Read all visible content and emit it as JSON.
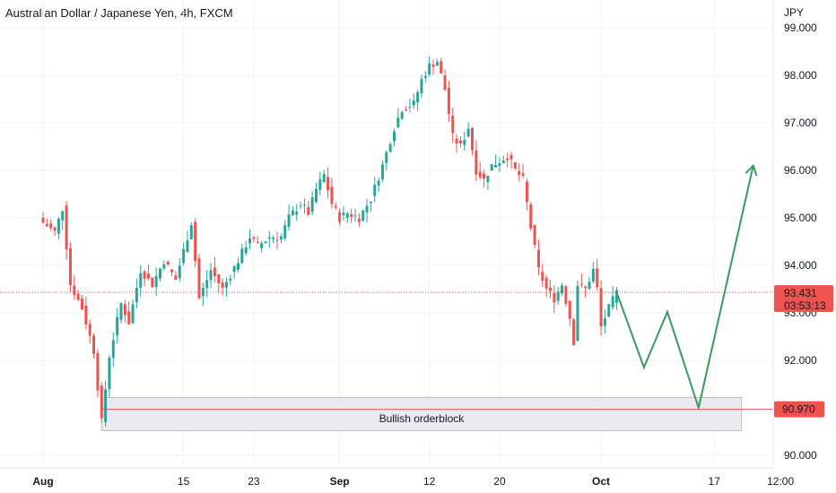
{
  "chart_title": "Australian Dollar / Japanese Yen, 4h, FXCM",
  "currency_label": "JPY",
  "chart_data": {
    "type": "candlestick",
    "symbol": "AUDJPY",
    "timeframe": "4h",
    "y_range": [
      89.7,
      99.3
    ],
    "y_ticks": [
      {
        "value": 99,
        "label": "99.000"
      },
      {
        "value": 98,
        "label": "98.000"
      },
      {
        "value": 97,
        "label": "97.000"
      },
      {
        "value": 96,
        "label": "96.000"
      },
      {
        "value": 95,
        "label": "95.000"
      },
      {
        "value": 94,
        "label": "94.000"
      },
      {
        "value": 93,
        "label": "93.000"
      },
      {
        "value": 92,
        "label": "92.000"
      },
      {
        "value": 90,
        "label": "90.000"
      }
    ],
    "x_ticks": [
      {
        "label": "Aug",
        "index": 0,
        "bold": true
      },
      {
        "label": "15",
        "index": 36,
        "bold": false
      },
      {
        "label": "23",
        "index": 54,
        "bold": false
      },
      {
        "label": "Sep",
        "index": 76,
        "bold": true
      },
      {
        "label": "12",
        "index": 99,
        "bold": false
      },
      {
        "label": "20",
        "index": 117,
        "bold": false
      },
      {
        "label": "Oct",
        "index": 143,
        "bold": true
      },
      {
        "label": "17",
        "index": 172,
        "bold": false
      },
      {
        "label": "12:00",
        "index": 189,
        "bold": false
      }
    ],
    "candle_count": 148,
    "price_path": [
      {
        "i": 0,
        "p": 94.9
      },
      {
        "i": 3,
        "p": 94.7
      },
      {
        "i": 5,
        "p": 95.2
      },
      {
        "i": 7,
        "p": 93.6
      },
      {
        "i": 10,
        "p": 93.1
      },
      {
        "i": 13,
        "p": 92.2
      },
      {
        "i": 15,
        "p": 90.7
      },
      {
        "i": 17,
        "p": 92.1
      },
      {
        "i": 20,
        "p": 93.2
      },
      {
        "i": 22,
        "p": 92.8
      },
      {
        "i": 25,
        "p": 93.9
      },
      {
        "i": 28,
        "p": 93.6
      },
      {
        "i": 31,
        "p": 94.1
      },
      {
        "i": 34,
        "p": 93.7
      },
      {
        "i": 38,
        "p": 94.9
      },
      {
        "i": 40,
        "p": 93.3
      },
      {
        "i": 43,
        "p": 93.9
      },
      {
        "i": 46,
        "p": 93.5
      },
      {
        "i": 50,
        "p": 94.1
      },
      {
        "i": 53,
        "p": 94.6
      },
      {
        "i": 55,
        "p": 94.4
      },
      {
        "i": 58,
        "p": 94.6
      },
      {
        "i": 61,
        "p": 94.6
      },
      {
        "i": 63,
        "p": 95.0
      },
      {
        "i": 66,
        "p": 95.3
      },
      {
        "i": 68,
        "p": 95.1
      },
      {
        "i": 70,
        "p": 95.6
      },
      {
        "i": 72,
        "p": 95.9
      },
      {
        "i": 74,
        "p": 95.3
      },
      {
        "i": 76,
        "p": 95.0
      },
      {
        "i": 78,
        "p": 95.1
      },
      {
        "i": 81,
        "p": 95.0
      },
      {
        "i": 84,
        "p": 95.4
      },
      {
        "i": 87,
        "p": 96.1
      },
      {
        "i": 90,
        "p": 96.9
      },
      {
        "i": 92,
        "p": 97.3
      },
      {
        "i": 95,
        "p": 97.4
      },
      {
        "i": 97,
        "p": 97.9
      },
      {
        "i": 99,
        "p": 98.2
      },
      {
        "i": 101,
        "p": 98.3
      },
      {
        "i": 103,
        "p": 97.7
      },
      {
        "i": 105,
        "p": 96.7
      },
      {
        "i": 107,
        "p": 96.5
      },
      {
        "i": 109,
        "p": 96.9
      },
      {
        "i": 111,
        "p": 96.0
      },
      {
        "i": 113,
        "p": 95.8
      },
      {
        "i": 115,
        "p": 96.1
      },
      {
        "i": 117,
        "p": 96.2
      },
      {
        "i": 119,
        "p": 96.3
      },
      {
        "i": 121,
        "p": 96.0
      },
      {
        "i": 123,
        "p": 95.8
      },
      {
        "i": 125,
        "p": 94.8
      },
      {
        "i": 127,
        "p": 93.9
      },
      {
        "i": 129,
        "p": 93.5
      },
      {
        "i": 131,
        "p": 93.3
      },
      {
        "i": 133,
        "p": 93.6
      },
      {
        "i": 135,
        "p": 92.9
      },
      {
        "i": 136,
        "p": 92.4
      },
      {
        "i": 137,
        "p": 93.6
      },
      {
        "i": 139,
        "p": 93.5
      },
      {
        "i": 141,
        "p": 93.9
      },
      {
        "i": 142,
        "p": 93.5
      },
      {
        "i": 143,
        "p": 92.7
      },
      {
        "i": 145,
        "p": 93.1
      },
      {
        "i": 147,
        "p": 93.43
      }
    ],
    "current_price": {
      "value": 93.431,
      "label": "93.431",
      "countdown": "03:53:13",
      "color": "#ef5350"
    },
    "horizontal_level": {
      "value": 90.97,
      "label": "90.970",
      "color": "#ef5350"
    },
    "orderblock": {
      "label": "Bullish orderblock",
      "top": 91.22,
      "bottom": 90.52,
      "start_index": 15,
      "end_index": 179
    },
    "projection_path": [
      {
        "i": 147,
        "p": 93.43
      },
      {
        "i": 154,
        "p": 91.85
      },
      {
        "i": 160,
        "p": 93.02
      },
      {
        "i": 168,
        "p": 91.0
      },
      {
        "i": 182,
        "p": 96.1
      }
    ],
    "colors": {
      "up": "#26a69a",
      "down": "#ef5350",
      "projection": "#3a9a5c",
      "grid": "#f0f3fa",
      "orderblock_fill": "#e9e9ee",
      "orderblock_border": "#b8bcc4"
    }
  }
}
